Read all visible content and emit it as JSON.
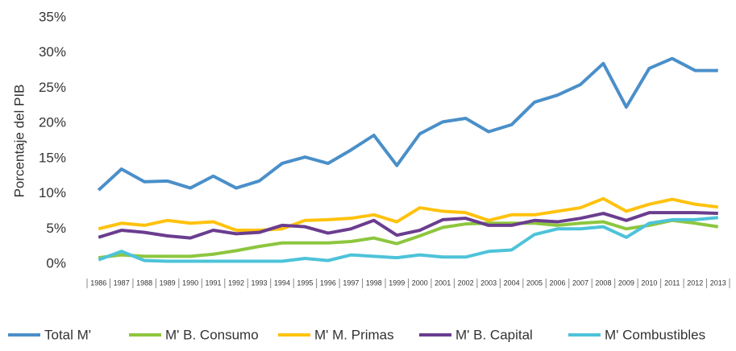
{
  "chart_data": {
    "type": "line",
    "y_label": "Porcentaje del PIB",
    "categories": [
      "1986",
      "1987",
      "1988",
      "1989",
      "1990",
      "1991",
      "1992",
      "1993",
      "1994",
      "1995",
      "1996",
      "1997",
      "1998",
      "1999",
      "2000",
      "2001",
      "2002",
      "2003",
      "2004",
      "2005",
      "2006",
      "2007",
      "2008",
      "2009",
      "2010",
      "2011",
      "2012",
      "2013"
    ],
    "ylim": [
      0,
      35
    ],
    "yticks": [
      {
        "value": 0,
        "label": "0%"
      },
      {
        "value": 5,
        "label": "5%"
      },
      {
        "value": 10,
        "label": "10%"
      },
      {
        "value": 15,
        "label": "15%"
      },
      {
        "value": 20,
        "label": "20%"
      },
      {
        "value": 25,
        "label": "25%"
      },
      {
        "value": 30,
        "label": "30%"
      },
      {
        "value": 35,
        "label": "35%"
      }
    ],
    "grid": false,
    "legend": "bottom",
    "series": [
      {
        "name": "Total M'",
        "color": "#4a8fc9",
        "values": [
          10.5,
          13.5,
          11.7,
          11.8,
          10.8,
          12.5,
          10.8,
          11.8,
          14.3,
          15.2,
          14.3,
          16.2,
          18.3,
          14,
          18.5,
          20.2,
          20.7,
          18.8,
          19.8,
          23,
          24,
          25.5,
          28.5,
          22.3,
          27.8,
          29.2,
          27.5,
          27.5
        ]
      },
      {
        "name": "M' B. Consumo",
        "color": "#8dc63f",
        "values": [
          0.9,
          1.3,
          1.1,
          1.1,
          1.1,
          1.4,
          1.9,
          2.5,
          3.0,
          3.0,
          3.0,
          3.2,
          3.7,
          2.9,
          4.0,
          5.2,
          5.7,
          5.8,
          5.8,
          5.8,
          5.5,
          5.8,
          6.0,
          5.0,
          5.5,
          6.2,
          5.8,
          5.3
        ]
      },
      {
        "name": "M' M. Primas",
        "color": "#ffc20e",
        "values": [
          5.0,
          5.8,
          5.5,
          6.2,
          5.8,
          6.0,
          4.8,
          4.8,
          5.0,
          6.2,
          6.3,
          6.5,
          7.0,
          6.0,
          8.0,
          7.5,
          7.3,
          6.2,
          7.0,
          7.0,
          7.5,
          8.0,
          9.3,
          7.5,
          8.5,
          9.2,
          8.5,
          8.1
        ]
      },
      {
        "name": "M' B. Capital",
        "color": "#6a3d8f",
        "values": [
          3.8,
          4.8,
          4.5,
          4.0,
          3.7,
          4.8,
          4.3,
          4.5,
          5.5,
          5.3,
          4.4,
          5.0,
          6.2,
          4.1,
          4.8,
          6.3,
          6.5,
          5.5,
          5.5,
          6.2,
          6.0,
          6.5,
          7.2,
          6.2,
          7.3,
          7.3,
          7.3,
          7.2
        ]
      },
      {
        "name": "M' Combustibles",
        "color": "#4dc3d9",
        "values": [
          0.6,
          1.8,
          0.5,
          0.4,
          0.4,
          0.4,
          0.4,
          0.4,
          0.4,
          0.8,
          0.5,
          1.3,
          1.1,
          0.9,
          1.3,
          1.0,
          1.0,
          1.8,
          2.0,
          4.2,
          5.0,
          5.0,
          5.3,
          3.8,
          5.8,
          6.3,
          6.3,
          6.6
        ]
      }
    ]
  }
}
